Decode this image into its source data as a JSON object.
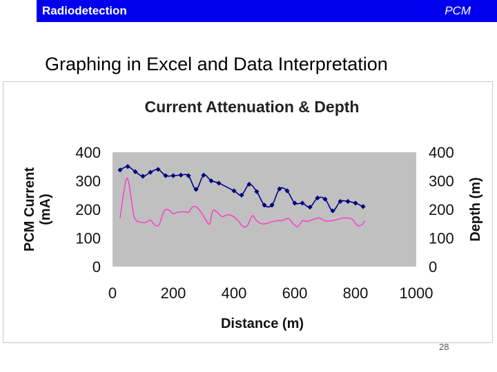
{
  "header": {
    "brand": "Radiodetection",
    "product": "PCM"
  },
  "slide": {
    "title": "Graphing in Excel and Data Interpretation",
    "page_number": "28"
  },
  "chart_data": {
    "type": "line",
    "title": "Current Attenuation & Depth",
    "xlabel": "Distance (m)",
    "ylabel": "PCM Current (mA)",
    "y2label": "Depth (m)",
    "xlim": [
      0,
      1000
    ],
    "ylim": [
      0,
      400
    ],
    "y2lim": [
      0,
      400
    ],
    "x_ticks": [
      "0",
      "200",
      "400",
      "600",
      "800",
      "1000"
    ],
    "y_ticks": [
      "0",
      "100",
      "200",
      "300",
      "400"
    ],
    "y2_ticks": [
      "0",
      "100",
      "200",
      "300",
      "400"
    ],
    "colors": {
      "plot_area": "#c0c0c0",
      "current": "#000080",
      "depth": "#ff33cc"
    },
    "series": [
      {
        "name": "PCM Current",
        "axis": "left",
        "marker": "diamond",
        "x": [
          25,
          50,
          75,
          100,
          125,
          150,
          175,
          200,
          225,
          250,
          275,
          300,
          325,
          350,
          400,
          425,
          450,
          475,
          500,
          525,
          550,
          575,
          600,
          625,
          650,
          675,
          700,
          725,
          750,
          775,
          800,
          825
        ],
        "values": [
          338,
          350,
          332,
          316,
          330,
          340,
          318,
          318,
          320,
          318,
          270,
          320,
          300,
          292,
          265,
          250,
          288,
          262,
          215,
          215,
          272,
          265,
          222,
          222,
          208,
          240,
          236,
          195,
          228,
          228,
          222,
          210
        ]
      },
      {
        "name": "Depth",
        "axis": "right",
        "marker": "none",
        "x": [
          25,
          35,
          45,
          52,
          60,
          70,
          80,
          95,
          110,
          125,
          135,
          145,
          155,
          170,
          185,
          200,
          215,
          235,
          250,
          265,
          280,
          295,
          310,
          320,
          330,
          345,
          360,
          375,
          390,
          410,
          430,
          445,
          460,
          475,
          490,
          505,
          520,
          540,
          560,
          580,
          595,
          610,
          625,
          640,
          660,
          680,
          700,
          720,
          740,
          760,
          775,
          790,
          805,
          820,
          830
        ],
        "values": [
          170,
          245,
          305,
          300,
          250,
          180,
          160,
          155,
          155,
          162,
          150,
          142,
          150,
          195,
          198,
          185,
          190,
          192,
          190,
          210,
          205,
          185,
          158,
          150,
          195,
          190,
          175,
          180,
          180,
          165,
          140,
          145,
          178,
          160,
          150,
          150,
          155,
          160,
          162,
          168,
          150,
          140,
          160,
          158,
          165,
          170,
          160,
          160,
          165,
          170,
          170,
          165,
          145,
          145,
          160
        ]
      }
    ]
  }
}
